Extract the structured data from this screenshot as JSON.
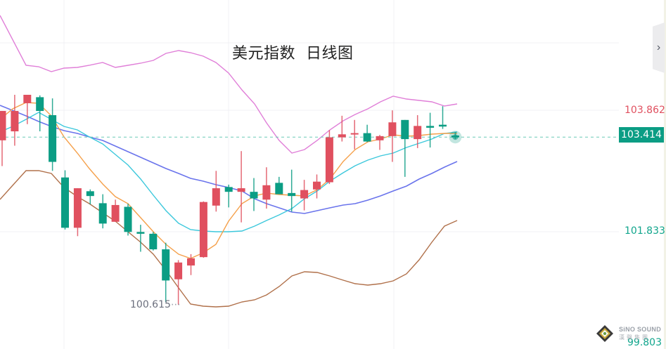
{
  "chart_data": {
    "type": "candlestick",
    "title": "美元指数  日线图",
    "instrument": "美元指数",
    "period": "日线图",
    "up_color": "#e0505f",
    "down_color": "#0b9d84",
    "y_axis": {
      "labels": [
        {
          "value": "103.862",
          "color": "#e0505f"
        },
        {
          "value": "101.833",
          "color": "#10a58c"
        },
        {
          "value": "99.803",
          "color": "#10a58c"
        }
      ],
      "range_visible": [
        99.8,
        105.7
      ]
    },
    "current_price": "103.414",
    "low_annotation": "100.615",
    "candles": [
      {
        "open": 103.36,
        "high": 103.49,
        "low": 102.93,
        "close": 103.85
      },
      {
        "open": 103.51,
        "high": 104.12,
        "low": 103.27,
        "close": 103.85
      },
      {
        "open": 103.98,
        "high": 104.1,
        "low": 103.63,
        "close": 104.12
      },
      {
        "open": 104.08,
        "high": 104.11,
        "low": 103.51,
        "close": 103.85
      },
      {
        "open": 103.78,
        "high": 104.06,
        "low": 102.85,
        "close": 103.0
      },
      {
        "open": 102.74,
        "high": 102.86,
        "low": 101.87,
        "close": 101.9
      },
      {
        "open": 101.9,
        "high": 102.54,
        "low": 101.76,
        "close": 102.56
      },
      {
        "open": 102.51,
        "high": 102.54,
        "low": 102.29,
        "close": 102.43
      },
      {
        "open": 102.31,
        "high": 102.46,
        "low": 101.89,
        "close": 101.97
      },
      {
        "open": 102.0,
        "high": 102.37,
        "low": 102.0,
        "close": 102.28
      },
      {
        "open": 102.25,
        "high": 102.3,
        "low": 101.77,
        "close": 101.83
      },
      {
        "open": 101.83,
        "high": 101.95,
        "low": 101.5,
        "close": 101.8
      },
      {
        "open": 101.8,
        "high": 101.83,
        "low": 101.52,
        "close": 101.54
      },
      {
        "open": 101.54,
        "high": 101.65,
        "low": 100.66,
        "close": 101.02
      },
      {
        "open": 101.04,
        "high": 101.36,
        "low": 100.615,
        "close": 101.32
      },
      {
        "open": 101.27,
        "high": 101.46,
        "low": 101.11,
        "close": 101.39
      },
      {
        "open": 101.41,
        "high": 102.34,
        "low": 101.4,
        "close": 102.33
      },
      {
        "open": 102.27,
        "high": 102.85,
        "low": 102.17,
        "close": 102.56
      },
      {
        "open": 102.58,
        "high": 102.62,
        "low": 102.24,
        "close": 102.5
      },
      {
        "open": 102.5,
        "high": 103.18,
        "low": 101.99,
        "close": 102.56
      },
      {
        "open": 102.5,
        "high": 102.73,
        "low": 102.18,
        "close": 102.39
      },
      {
        "open": 102.37,
        "high": 102.91,
        "low": 102.22,
        "close": 102.61
      },
      {
        "open": 102.65,
        "high": 102.75,
        "low": 102.46,
        "close": 102.46
      },
      {
        "open": 102.48,
        "high": 102.87,
        "low": 102.17,
        "close": 102.43
      },
      {
        "open": 102.39,
        "high": 102.7,
        "low": 102.19,
        "close": 102.53
      },
      {
        "open": 102.54,
        "high": 102.79,
        "low": 102.39,
        "close": 102.67
      },
      {
        "open": 102.66,
        "high": 103.53,
        "low": 102.63,
        "close": 103.41
      },
      {
        "open": 103.41,
        "high": 103.77,
        "low": 103.34,
        "close": 103.46
      },
      {
        "open": 103.46,
        "high": 103.7,
        "low": 103.21,
        "close": 103.48
      },
      {
        "open": 103.48,
        "high": 103.62,
        "low": 103.33,
        "close": 103.34
      },
      {
        "open": 103.36,
        "high": 103.45,
        "low": 103.2,
        "close": 103.43
      },
      {
        "open": 103.43,
        "high": 103.86,
        "low": 103.0,
        "close": 103.66
      },
      {
        "open": 103.7,
        "high": 103.7,
        "low": 102.75,
        "close": 103.38
      },
      {
        "open": 103.38,
        "high": 103.78,
        "low": 103.23,
        "close": 103.6
      },
      {
        "open": 103.6,
        "high": 103.82,
        "low": 103.24,
        "close": 103.57
      },
      {
        "open": 103.62,
        "high": 103.93,
        "low": 103.55,
        "close": 103.59
      },
      {
        "open": 103.44,
        "high": 103.5,
        "low": 103.38,
        "close": 103.41
      }
    ],
    "series": [
      {
        "name": "Bollinger Upper",
        "color": "#e07fd8"
      },
      {
        "name": "Bollinger Middle (MA20)",
        "color": "#6a74ec"
      },
      {
        "name": "Bollinger Lower",
        "color": "#b0704a"
      },
      {
        "name": "MA5",
        "color": "#f5a04a"
      },
      {
        "name": "MA10",
        "color": "#3cc8dc"
      }
    ],
    "grid": true,
    "xlabel": "",
    "ylabel": ""
  },
  "header": {
    "title": "美元指数  日线图"
  },
  "axis": {
    "upper_label": "103.862",
    "current_label": "103.414",
    "mid_label": "101.833",
    "bottom_label": "99.803"
  },
  "annotations": {
    "low_label": "100.615"
  },
  "controls": {
    "side_toggle": "›"
  },
  "watermark": {
    "brand": "SiNO SOUND",
    "sub": "漢聲集團"
  }
}
